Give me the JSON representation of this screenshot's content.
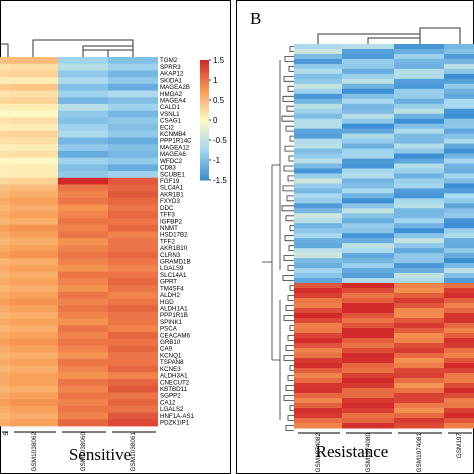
{
  "colors": {
    "low": "#3d8fd4",
    "midlow": "#a6d8ef",
    "mid": "#fff8c4",
    "midhigh": "#f79b54",
    "high": "#d22a2a"
  },
  "chart_data": [
    {
      "type": "heatmap",
      "panel": "",
      "group_label": "Sensitive",
      "columns": [
        "GSM1038062",
        "GSM1038060",
        "GSM1038061"
      ],
      "partial_left_label": "5",
      "scale": {
        "min": -1.5,
        "max": 1.5,
        "ticks": [
          "1.5",
          "1",
          "0.5",
          "0",
          "-0.5",
          "-1",
          "-1.5"
        ]
      },
      "rows": [
        "TGM2",
        "SPRR3",
        "AKAP12",
        "SKIDA1",
        "MAGEA2B",
        "HMGA2",
        "MAGEA4",
        "CALD1",
        "VSNL1",
        "CSAG1",
        "ECI2",
        "KCNMB4",
        "PPP1R14C",
        "MAGEA12",
        "MAGEA6",
        "WFDC2",
        "CD83",
        "SCUBE1",
        "FGF19",
        "SLC4A1",
        "AKR1B1",
        "FXYD3",
        "DDC",
        "TFF3",
        "IGFBP2",
        "NNMT",
        "HSD17B2",
        "TFF2",
        "AKR1B10",
        "CLRN3",
        "GRAMD1B",
        "LGALS9",
        "SLC14A1",
        "GPRT",
        "TM4SF4",
        "ALDH2",
        "HGD",
        "ALDH1A1",
        "PPP1R1B",
        "SPINK1",
        "PSCA",
        "CEACAM6",
        "GRB10",
        "CA9",
        "KCNQ1",
        "TSPAN8",
        "KCNE3",
        "ALDH3A1",
        "CNECUT2",
        "KBTBD11",
        "SGPP2",
        "CA12",
        "LGALS2",
        "HNF1A-AS1",
        "PDZK1IP1"
      ],
      "values": [
        [
          0.5,
          -0.8,
          -1.0
        ],
        [
          0.2,
          -0.6,
          -0.8
        ],
        [
          0.3,
          -0.9,
          -1.1
        ],
        [
          0.1,
          -0.7,
          -0.9
        ],
        [
          0.4,
          -1.0,
          -1.2
        ],
        [
          0.2,
          -0.8,
          -0.7
        ],
        [
          0.3,
          -1.1,
          -1.0
        ],
        [
          0.1,
          -0.6,
          -0.8
        ],
        [
          0.0,
          -0.9,
          -1.1
        ],
        [
          0.2,
          -1.0,
          -0.9
        ],
        [
          0.1,
          -0.8,
          -1.0
        ],
        [
          0.3,
          -0.7,
          -0.9
        ],
        [
          0.2,
          -1.1,
          -1.2
        ],
        [
          0.1,
          -0.9,
          -1.0
        ],
        [
          0.2,
          -1.2,
          -1.1
        ],
        [
          0.0,
          -0.8,
          -0.9
        ],
        [
          0.1,
          -1.0,
          -1.2
        ],
        [
          0.1,
          -0.9,
          -0.8
        ],
        [
          0.3,
          1.5,
          1.2
        ],
        [
          0.5,
          1.0,
          1.1
        ],
        [
          0.6,
          0.9,
          1.2
        ],
        [
          0.7,
          1.0,
          1.1
        ],
        [
          0.6,
          0.8,
          1.0
        ],
        [
          0.7,
          0.9,
          1.1
        ],
        [
          0.6,
          1.0,
          1.0
        ],
        [
          0.8,
          0.9,
          1.1
        ],
        [
          0.7,
          1.0,
          0.9
        ],
        [
          0.6,
          0.8,
          1.0
        ],
        [
          0.7,
          0.9,
          1.0
        ],
        [
          0.8,
          1.0,
          1.1
        ],
        [
          0.6,
          0.9,
          1.0
        ],
        [
          0.7,
          0.8,
          0.9
        ],
        [
          0.6,
          1.0,
          1.0
        ],
        [
          0.7,
          0.9,
          1.1
        ],
        [
          0.6,
          0.8,
          1.0
        ],
        [
          0.7,
          1.0,
          0.9
        ],
        [
          0.8,
          0.9,
          1.0
        ],
        [
          0.7,
          1.0,
          1.1
        ],
        [
          0.6,
          0.9,
          1.0
        ],
        [
          0.7,
          0.8,
          1.0
        ],
        [
          0.6,
          1.0,
          0.9
        ],
        [
          0.7,
          0.9,
          1.1
        ],
        [
          0.8,
          1.0,
          1.0
        ],
        [
          0.7,
          0.9,
          1.1
        ],
        [
          0.6,
          0.8,
          1.0
        ],
        [
          0.7,
          1.0,
          1.0
        ],
        [
          0.6,
          0.9,
          1.1
        ],
        [
          0.7,
          0.8,
          0.9
        ],
        [
          0.7,
          1.0,
          1.1
        ],
        [
          0.6,
          0.9,
          1.2
        ],
        [
          0.7,
          1.0,
          1.0
        ],
        [
          0.8,
          0.9,
          1.1
        ],
        [
          0.7,
          1.0,
          1.0
        ],
        [
          0.6,
          0.9,
          1.2
        ],
        [
          0.7,
          1.1,
          1.3
        ]
      ]
    },
    {
      "type": "heatmap",
      "panel": "B",
      "group_label": "Resistance",
      "columns": [
        "GSM1974082",
        "GSM1974080",
        "GSM1974081",
        "GSM197"
      ],
      "values_top": [
        -0.9,
        -1.0,
        -1.0,
        -1.1
      ],
      "values_bottom": [
        1.2,
        1.3,
        1.1,
        1.2
      ]
    }
  ]
}
